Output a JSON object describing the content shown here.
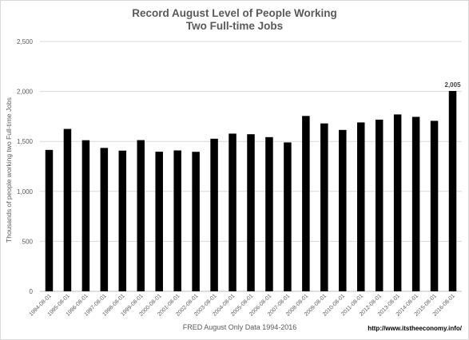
{
  "chart_data": {
    "type": "bar",
    "title_line1": "Record August Level of People Working",
    "title_line2": "Two Full-time Jobs",
    "xlabel": "FRED August Only Data 1994-2016",
    "ylabel": "Thousands of people working two Full-time Jobs",
    "source_note": "http://www.itstheeconomy.info/",
    "ylim": [
      0,
      2500
    ],
    "yticks": [
      "0",
      "500",
      "1,000",
      "1,500",
      "2,000",
      "2,500"
    ],
    "ytick_values": [
      0,
      500,
      1000,
      1500,
      2000,
      2500
    ],
    "grid": true,
    "bar_color": "#000000",
    "categories": [
      "1994-08-01",
      "1995-08-01",
      "1996-08-01",
      "1997-08-01",
      "1998-08-01",
      "1999-08-01",
      "2000-08-01",
      "2001-08-01",
      "2002-08-01",
      "2003-08-01",
      "2004-08-01",
      "2005-08-01",
      "2006-08-01",
      "2007-08-01",
      "2008-08-01",
      "2009-08-01",
      "2010-08-01",
      "2011-08-01",
      "2012-08-01",
      "2013-08-01",
      "2014-08-01",
      "2015-08-01",
      "2016-08-01"
    ],
    "values": [
      1415,
      1625,
      1512,
      1435,
      1408,
      1513,
      1397,
      1410,
      1396,
      1527,
      1578,
      1572,
      1543,
      1490,
      1755,
      1680,
      1615,
      1690,
      1718,
      1770,
      1746,
      1706,
      2005
    ],
    "data_labels": [
      {
        "index": 22,
        "text": "2,005"
      }
    ]
  }
}
